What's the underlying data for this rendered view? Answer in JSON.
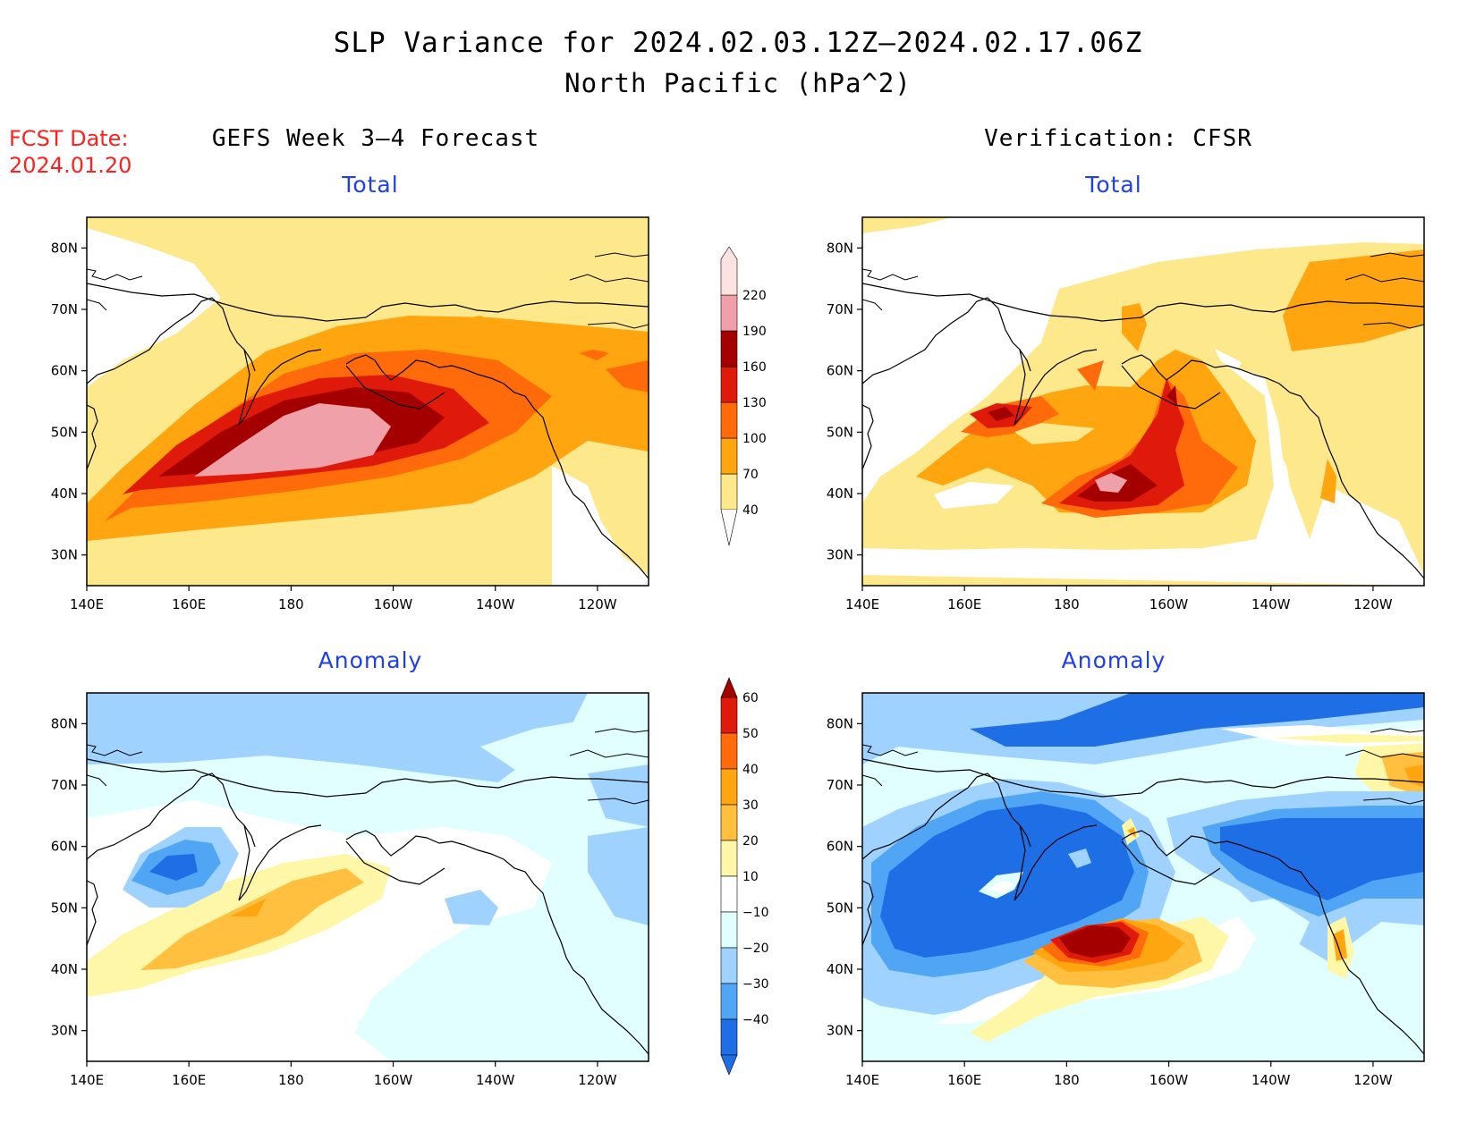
{
  "title": "SLP Variance for 2024.02.03.12Z–2024.02.17.06Z",
  "subtitle": "North Pacific (hPa^2)",
  "fcst_date": {
    "label": "FCST Date:",
    "value": "2024.01.20"
  },
  "columns": {
    "left": "GEFS Week 3–4 Forecast",
    "right": "Verification: CFSR"
  },
  "panels": {
    "fcst_total": {
      "title": "Total"
    },
    "obs_total": {
      "title": "Total"
    },
    "fcst_anom": {
      "title": "Anomaly"
    },
    "obs_anom": {
      "title": "Anomaly"
    }
  },
  "map": {
    "lon_ticks": [
      "140E",
      "160E",
      "180",
      "160W",
      "140W",
      "120W"
    ],
    "lon_values": [
      140,
      160,
      180,
      200,
      220,
      240
    ],
    "lat_ticks": [
      "30N",
      "40N",
      "50N",
      "60N",
      "70N",
      "80N"
    ],
    "lat_values": [
      30,
      40,
      50,
      60,
      70,
      80
    ],
    "lon_range": [
      140,
      250
    ],
    "lat_range": [
      25,
      85
    ]
  },
  "colorbar_total": {
    "levels": [
      "40",
      "70",
      "100",
      "130",
      "160",
      "190",
      "220"
    ],
    "colors": [
      "#fee88c",
      "#ffa510",
      "#ff6a0a",
      "#e01a0a",
      "#a50000",
      "#f0a0a8",
      "#fde2e2"
    ]
  },
  "colorbar_anom": {
    "levels": [
      "60",
      "50",
      "40",
      "30",
      "20",
      "10",
      "−10",
      "−20",
      "−30",
      "−40"
    ],
    "colors_top_down": [
      "#a50000",
      "#e01a0a",
      "#ff6a0a",
      "#ffa510",
      "#ffc040",
      "#fff7a8",
      "#ffffff",
      "#e1ffff",
      "#a0d2ff",
      "#50a6f5",
      "#1e6ee6",
      "#1e6ee6"
    ]
  }
}
